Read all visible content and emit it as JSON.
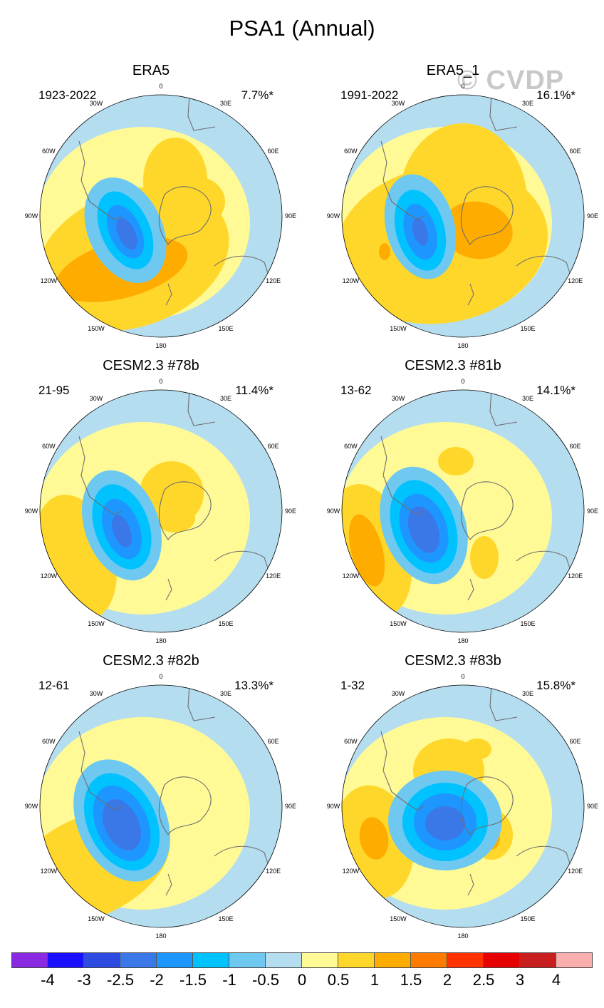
{
  "title": "PSA1 (Annual)",
  "watermark": "© CVDP",
  "panels": [
    {
      "title": "ERA5",
      "years": "1923-2022",
      "pct": "7.7%*"
    },
    {
      "title": "ERA5_1",
      "years": "1991-2022",
      "pct": "16.1%*"
    },
    {
      "title": "CESM2.3 #78b",
      "years": "21-95",
      "pct": "11.4%*"
    },
    {
      "title": "CESM2.3 #81b",
      "years": "13-62",
      "pct": "14.1%*"
    },
    {
      "title": "CESM2.3 #82b",
      "years": "12-61",
      "pct": "13.3%*"
    },
    {
      "title": "CESM2.3 #83b",
      "years": "1-32",
      "pct": "15.8%*"
    }
  ],
  "lon_labels": [
    "0",
    "30E",
    "60E",
    "90E",
    "120E",
    "150E",
    "180",
    "150W",
    "120W",
    "90W",
    "60W",
    "30W"
  ],
  "colorbar": {
    "labels": [
      "-4",
      "-3",
      "-2.5",
      "-2",
      "-1.5",
      "-1",
      "-0.5",
      "0",
      "0.5",
      "1",
      "1.5",
      "2",
      "2.5",
      "3",
      "4"
    ],
    "colors": [
      "#8a2be2",
      "#1a10ff",
      "#2d4be0",
      "#3a78e8",
      "#1e96ff",
      "#00c2ff",
      "#6ec8f0",
      "#b4ddf0",
      "#fffa96",
      "#ffd72a",
      "#ffac00",
      "#ff7b00",
      "#ff3200",
      "#e60000",
      "#c81e1e",
      "#faafaf"
    ]
  },
  "chart_data": {
    "type": "heatmap",
    "title": "PSA1 (Annual)",
    "projection": "south polar stereographic",
    "levels": [
      -4,
      -3,
      -2.5,
      -2,
      -1.5,
      -1,
      -0.5,
      0,
      0.5,
      1,
      1.5,
      2,
      2.5,
      3,
      4
    ],
    "panels": [
      {
        "name": "ERA5",
        "period": "1923-2022",
        "variance_explained": 7.7,
        "center_neg": [
          -1.5,
          "120W-90W"
        ],
        "ring_pos": [
          1.5,
          "150W-90W"
        ]
      },
      {
        "name": "ERA5_1",
        "period": "1991-2022",
        "variance_explained": 16.1,
        "center_neg": [
          -1.5,
          "90W"
        ],
        "ring_pos": [
          1.0,
          "120W-90W"
        ]
      },
      {
        "name": "CESM2.3 #78b",
        "period": "21-95",
        "variance_explained": 11.4,
        "center_neg": [
          -1.5,
          "100W"
        ],
        "ring_pos": [
          0.5,
          "120W"
        ]
      },
      {
        "name": "CESM2.3 #81b",
        "period": "13-62",
        "variance_explained": 14.1,
        "center_neg": [
          -2.0,
          "90W"
        ],
        "ring_pos": [
          1.0,
          "110W"
        ]
      },
      {
        "name": "CESM2.3 #82b",
        "period": "12-61",
        "variance_explained": 13.3,
        "center_neg": [
          -2.0,
          "100W"
        ],
        "ring_pos": [
          0.5,
          "140W"
        ]
      },
      {
        "name": "CESM2.3 #83b",
        "period": "1-32",
        "variance_explained": 15.8,
        "center_neg": [
          -2.0,
          "100W"
        ],
        "ring_pos": [
          1.0,
          "110W"
        ]
      }
    ]
  }
}
